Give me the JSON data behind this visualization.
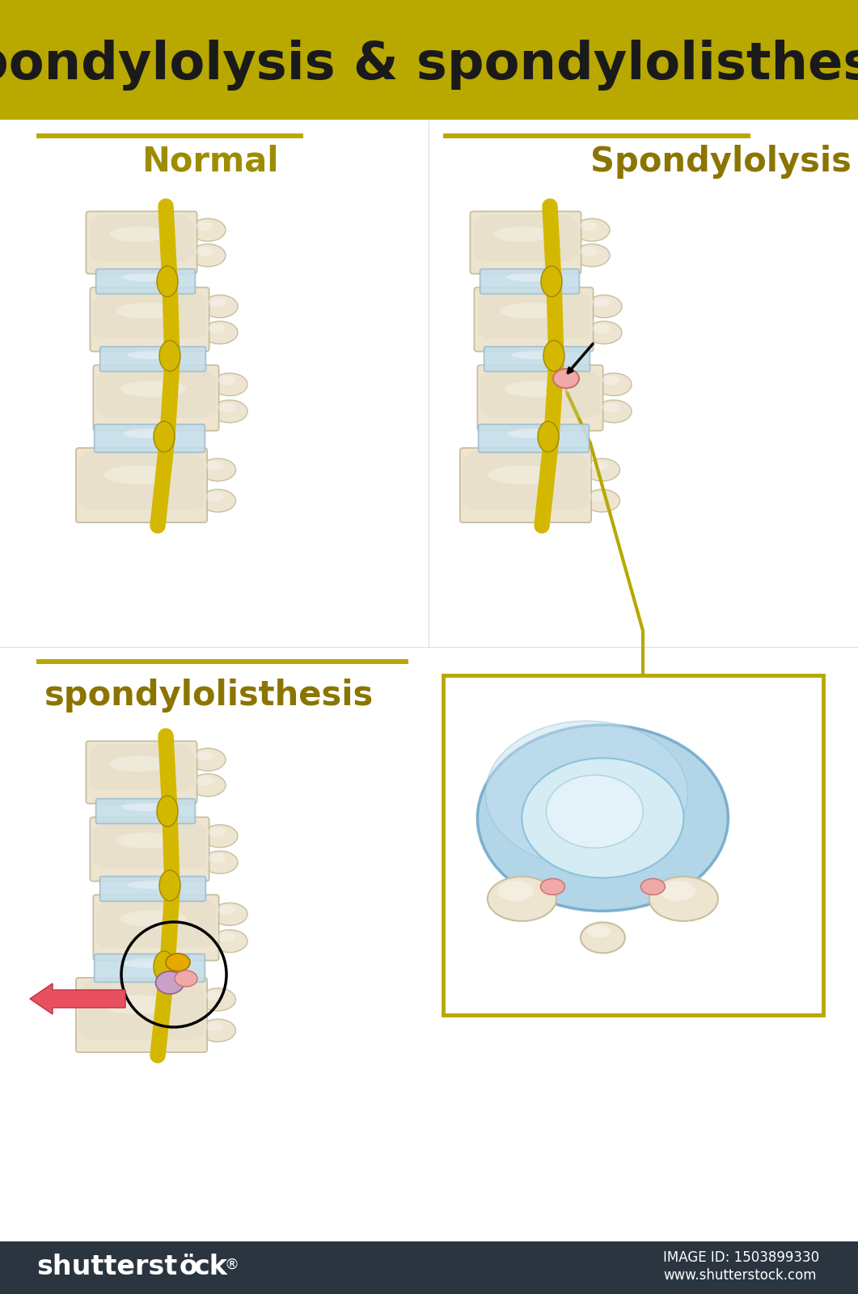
{
  "title": "Spondylolysis & spondylolisthesis",
  "header_color": "#B8A800",
  "header_text_color": "#1a1a1a",
  "bg_color": "#ffffff",
  "label_normal": "Normal",
  "label_spondylolysis": "Spondylolysis",
  "label_spondylolisthesis": "spondylolisthesis",
  "label_color_normal": "#9E8C00",
  "label_color_spondylolysis": "#8B7500",
  "label_color_spondylolisthesis": "#8B7500",
  "bone_color": "#EDE5D0",
  "bone_mid": "#DDD5BB",
  "bone_dark": "#C8BFA0",
  "bone_light": "#F5F0E5",
  "disc_color": "#C5DDE8",
  "disc_dark": "#9ABDD0",
  "nerve_color": "#D4B800",
  "nerve_dark": "#A08800",
  "fracture_color": "#F0A8A8",
  "fracture_dark": "#C87070",
  "arrow_color": "#E85060",
  "arrow_dark": "#C03040",
  "footer_color": "#2a3540",
  "image_id": "IMAGE ID: 1503899330",
  "site": "www.shutterstock.com",
  "box_color": "#B8A800",
  "line_color": "#B8A800",
  "purple_color": "#C8A0C8",
  "orange_color": "#E8A800"
}
